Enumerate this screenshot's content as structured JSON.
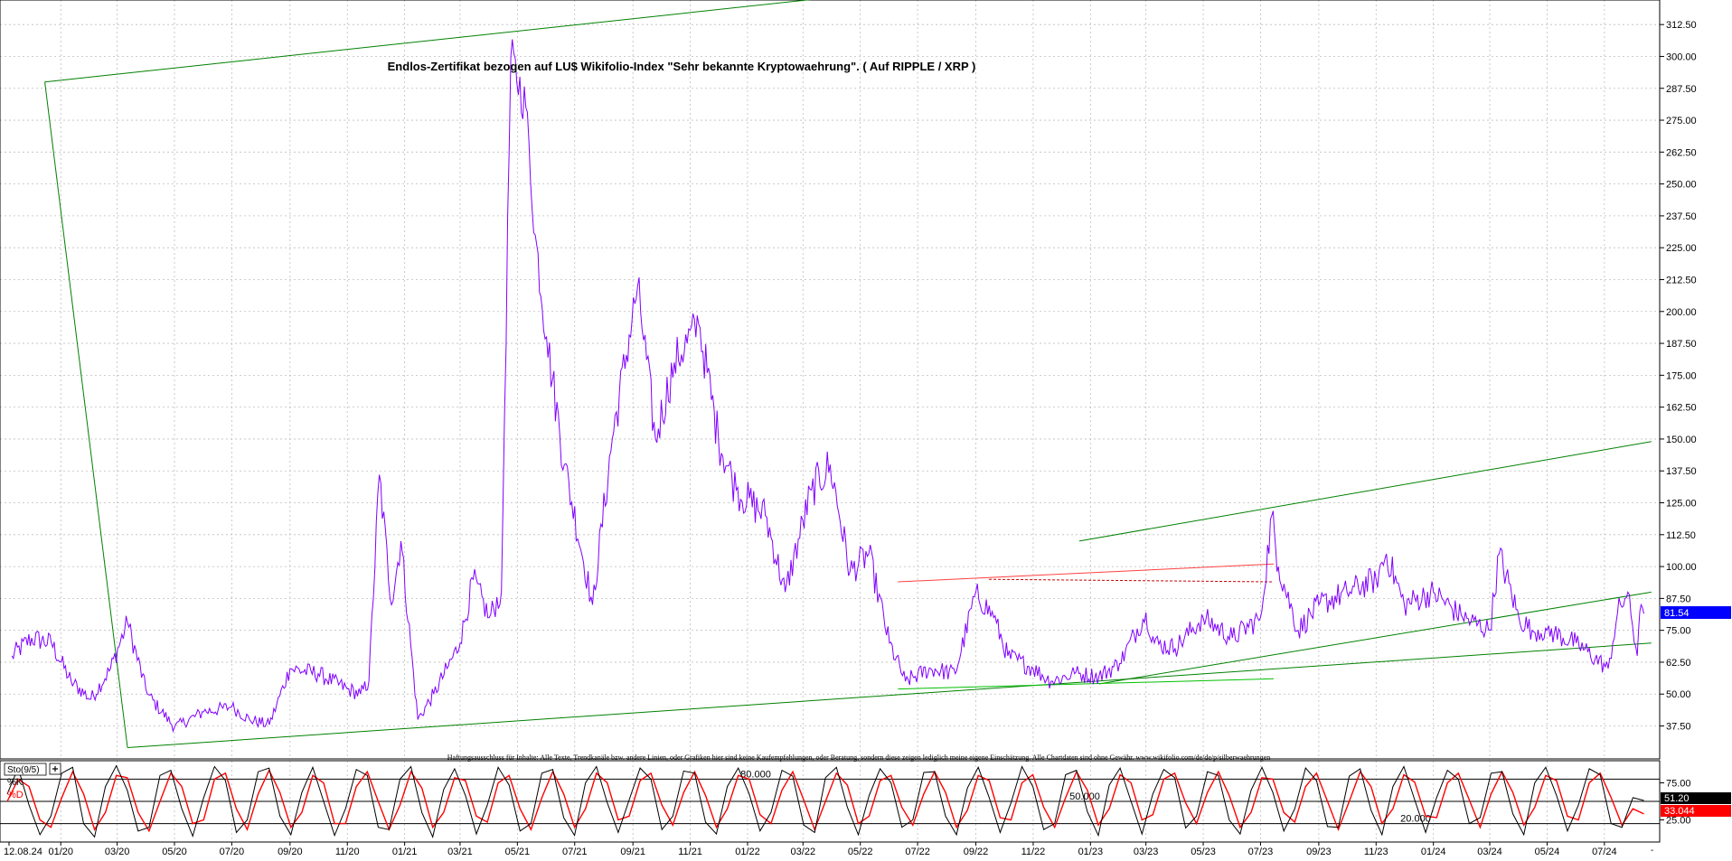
{
  "chart_data": [
    {
      "type": "line",
      "title": "Endlos-Zertifikat bezogen auf LU$ Wikifolio-Index \"Sehr bekannte Kryptowaehrung\". ( Auf RIPPLE / XRP )",
      "disclaimer": "Haftungsausschluss für Inhalte: Alle Texte, Trendkanäle bzw. andere Linien, oder Grafiken hier sind keine Kaufempfehlungen, oder Beratung, sondern diese zeigen lediglich meine eigene Einschätzung. Alle Chartdaten sind ohne Gewähr. www.wikifolio.com/de/de/p/silberwaehrungen",
      "x_tick_labels": [
        "12.08.24",
        "01/20",
        "03/20",
        "05/20",
        "07/20",
        "09/20",
        "11/20",
        "01/21",
        "03/21",
        "05/21",
        "07/21",
        "09/21",
        "11/21",
        "01/22",
        "03/22",
        "05/22",
        "07/22",
        "09/22",
        "11/22",
        "01/23",
        "03/23",
        "05/23",
        "07/23",
        "09/23",
        "11/23",
        "01/24",
        "03/24",
        "05/24",
        "07/24"
      ],
      "y_tick_labels": [
        "312.50",
        "300.00",
        "287.50",
        "275.00",
        "262.50",
        "250.00",
        "237.50",
        "225.00",
        "212.50",
        "200.00",
        "187.50",
        "175.00",
        "162.50",
        "150.00",
        "137.50",
        "125.00",
        "112.50",
        "100.00",
        "87.50",
        "75.00",
        "62.50",
        "50.00",
        "37.50"
      ],
      "ylim": [
        26,
        320
      ],
      "last_value_label": "81.54",
      "colors": {
        "price": "#8000ff",
        "trendline": "#008000",
        "resistance": "#ff4040",
        "last_value_bg": "#0000ff"
      },
      "x": [
        "2019-11-10",
        "2019-12-01",
        "2019-12-22",
        "2020-01-12",
        "2020-02-02",
        "2020-02-23",
        "2020-03-12",
        "2020-04-02",
        "2020-05-01",
        "2020-06-01",
        "2020-07-01",
        "2020-07-20",
        "2020-08-10",
        "2020-09-01",
        "2020-10-01",
        "2020-11-01",
        "2020-11-15",
        "2020-11-24",
        "2020-12-05",
        "2020-12-18",
        "2020-12-28",
        "2021-01-15",
        "2021-02-01",
        "2021-02-15",
        "2021-03-01",
        "2021-03-15",
        "2021-04-01",
        "2021-04-14",
        "2021-04-24",
        "2021-05-10",
        "2021-05-20",
        "2021-06-01",
        "2021-06-20",
        "2021-07-20",
        "2021-08-10",
        "2021-09-06",
        "2021-09-25",
        "2021-10-15",
        "2021-11-10",
        "2021-12-01",
        "2021-12-20",
        "2022-01-20",
        "2022-02-10",
        "2022-03-10",
        "2022-03-30",
        "2022-04-20",
        "2022-05-10",
        "2022-06-01",
        "2022-06-18",
        "2022-07-15",
        "2022-08-10",
        "2022-09-01",
        "2022-09-20",
        "2022-10-05",
        "2022-11-01",
        "2022-11-20",
        "2022-12-15",
        "2023-01-10",
        "2023-02-01",
        "2023-03-01",
        "2023-03-10",
        "2023-04-01",
        "2023-05-01",
        "2023-06-01",
        "2023-07-01",
        "2023-07-13",
        "2023-07-20",
        "2023-08-10",
        "2023-09-01",
        "2023-10-01",
        "2023-11-01",
        "2023-11-12",
        "2023-12-01",
        "2024-01-01",
        "2024-02-01",
        "2024-03-01",
        "2024-03-11",
        "2024-04-01",
        "2024-04-15",
        "2024-05-01",
        "2024-06-01",
        "2024-07-05",
        "2024-07-15",
        "2024-07-26",
        "2024-08-05",
        "2024-08-09",
        "2024-08-12"
      ],
      "series": [
        {
          "values": [
            65,
            72,
            70,
            55,
            48,
            60,
            78,
            50,
            37,
            43,
            45,
            40,
            38,
            60,
            58,
            52,
            50,
            55,
            136,
            85,
            110,
            40,
            50,
            60,
            70,
            95,
            80,
            90,
            300,
            280,
            230,
            190,
            140,
            85,
            150,
            210,
            150,
            180,
            195,
            150,
            130,
            120,
            90,
            130,
            140,
            98,
            105,
            70,
            55,
            60,
            58,
            90,
            80,
            65,
            60,
            55,
            58,
            57,
            62,
            82,
            70,
            68,
            80,
            72,
            80,
            120,
            100,
            75,
            85,
            90,
            95,
            105,
            85,
            90,
            80,
            75,
            105,
            80,
            75,
            75,
            70,
            60,
            82,
            90,
            65,
            85,
            81.54
          ]
        }
      ],
      "annotations": [
        {
          "type": "trendline",
          "x1": "2019-12-15",
          "y1": 290,
          "x2": "2020-03-12",
          "y2": 29
        },
        {
          "type": "trendline",
          "x1": "2019-12-15",
          "y1": 290,
          "x2": "2022-09-20",
          "y2": 330
        },
        {
          "type": "trendline",
          "x1": "2020-03-12",
          "y1": 29,
          "x2": "2024-08-20",
          "y2": 70
        },
        {
          "type": "trendline",
          "x1": "2023-01-10",
          "y1": 54,
          "x2": "2024-08-20",
          "y2": 90
        },
        {
          "type": "trendline",
          "x1": "2022-12-20",
          "y1": 110,
          "x2": "2024-08-20",
          "y2": 149
        },
        {
          "type": "support",
          "x1": "2022-06-10",
          "y1": 52,
          "x2": "2023-07-15",
          "y2": 56
        },
        {
          "type": "resistance",
          "x1": "2022-06-10",
          "y1": 94,
          "x2": "2023-07-15",
          "y2": 101
        },
        {
          "type": "resistance-dashed",
          "x1": "2022-09-15",
          "y1": 95,
          "x2": "2023-07-15",
          "y2": 94
        }
      ]
    },
    {
      "type": "line",
      "title": "Sto(9/5)",
      "legend": [
        "%K",
        "%D"
      ],
      "levels": [
        {
          "label": "80.000",
          "value": 80
        },
        {
          "label": "50.000",
          "value": 50
        },
        {
          "label": "20.000",
          "value": 20
        }
      ],
      "y_tick_labels": [
        "75.00",
        "25.00"
      ],
      "last_values": [
        {
          "label": "51.20",
          "bg": "#000000"
        },
        {
          "label": "33.044",
          "bg": "#ff0000"
        }
      ],
      "ylim": [
        0,
        100
      ],
      "colors": {
        "k": "#000000",
        "d": "#ff0000"
      },
      "cycles": 72,
      "series": [
        {
          "name": "%K",
          "values": [
            60,
            95,
            45,
            5,
            30,
            88,
            96,
            20,
            2,
            70,
            98,
            65,
            10,
            15,
            85,
            92,
            40,
            3,
            55,
            97,
            78,
            8,
            25,
            90,
            95,
            30,
            5,
            62,
            96,
            50,
            4,
            40,
            93,
            85,
            15,
            12,
            80,
            97,
            35,
            2,
            66,
            94,
            58,
            6,
            45,
            96,
            72,
            10,
            20,
            88,
            93,
            28,
            4,
            75,
            97,
            48,
            8,
            52,
            95,
            80,
            12,
            30,
            91,
            88,
            22,
            6,
            70,
            95,
            60,
            10,
            35,
            92,
            84,
            18,
            8,
            82,
            96,
            42,
            5,
            58,
            94,
            75,
            15,
            25,
            89,
            90,
            30,
            5,
            68,
            96,
            55,
            8,
            48,
            97,
            70,
            12,
            20,
            86,
            92,
            36,
            4,
            72,
            95,
            50,
            6,
            60,
            93,
            82,
            14,
            30,
            90,
            85,
            25,
            6,
            65,
            96,
            62,
            10,
            40,
            95,
            78,
            16,
            15,
            84,
            94,
            38,
            5,
            70,
            97,
            52,
            8,
            55,
            92,
            80,
            20,
            28,
            88,
            90,
            33,
            5,
            75,
            96,
            58,
            10,
            45,
            94,
            86,
            20,
            15,
            55,
            51.2
          ]
        },
        {
          "name": "%D",
          "values": [
            50,
            80,
            70,
            25,
            15,
            55,
            90,
            60,
            12,
            35,
            85,
            82,
            35,
            10,
            50,
            88,
            70,
            20,
            25,
            80,
            88,
            40,
            12,
            60,
            92,
            62,
            15,
            35,
            85,
            75,
            20,
            20,
            70,
            90,
            50,
            12,
            45,
            90,
            68,
            15,
            35,
            82,
            78,
            30,
            22,
            75,
            85,
            40,
            12,
            55,
            90,
            60,
            15,
            40,
            88,
            75,
            25,
            30,
            78,
            88,
            45,
            18,
            62,
            90,
            58,
            15,
            40,
            85,
            80,
            32,
            20,
            65,
            90,
            52,
            12,
            50,
            88,
            72,
            20,
            30,
            78,
            85,
            42,
            18,
            60,
            90,
            62,
            15,
            38,
            85,
            78,
            28,
            25,
            75,
            86,
            42,
            15,
            55,
            90,
            65,
            18,
            40,
            86,
            75,
            25,
            32,
            80,
            88,
            48,
            20,
            62,
            90,
            58,
            15,
            35,
            82,
            80,
            35,
            22,
            70,
            88,
            50,
            12,
            50,
            90,
            70,
            20,
            40,
            86,
            76,
            30,
            28,
            75,
            88,
            52,
            15,
            60,
            90,
            62,
            18,
            42,
            85,
            78,
            30,
            25,
            75,
            88,
            55,
            18,
            40,
            33.044
          ]
        }
      ]
    }
  ]
}
